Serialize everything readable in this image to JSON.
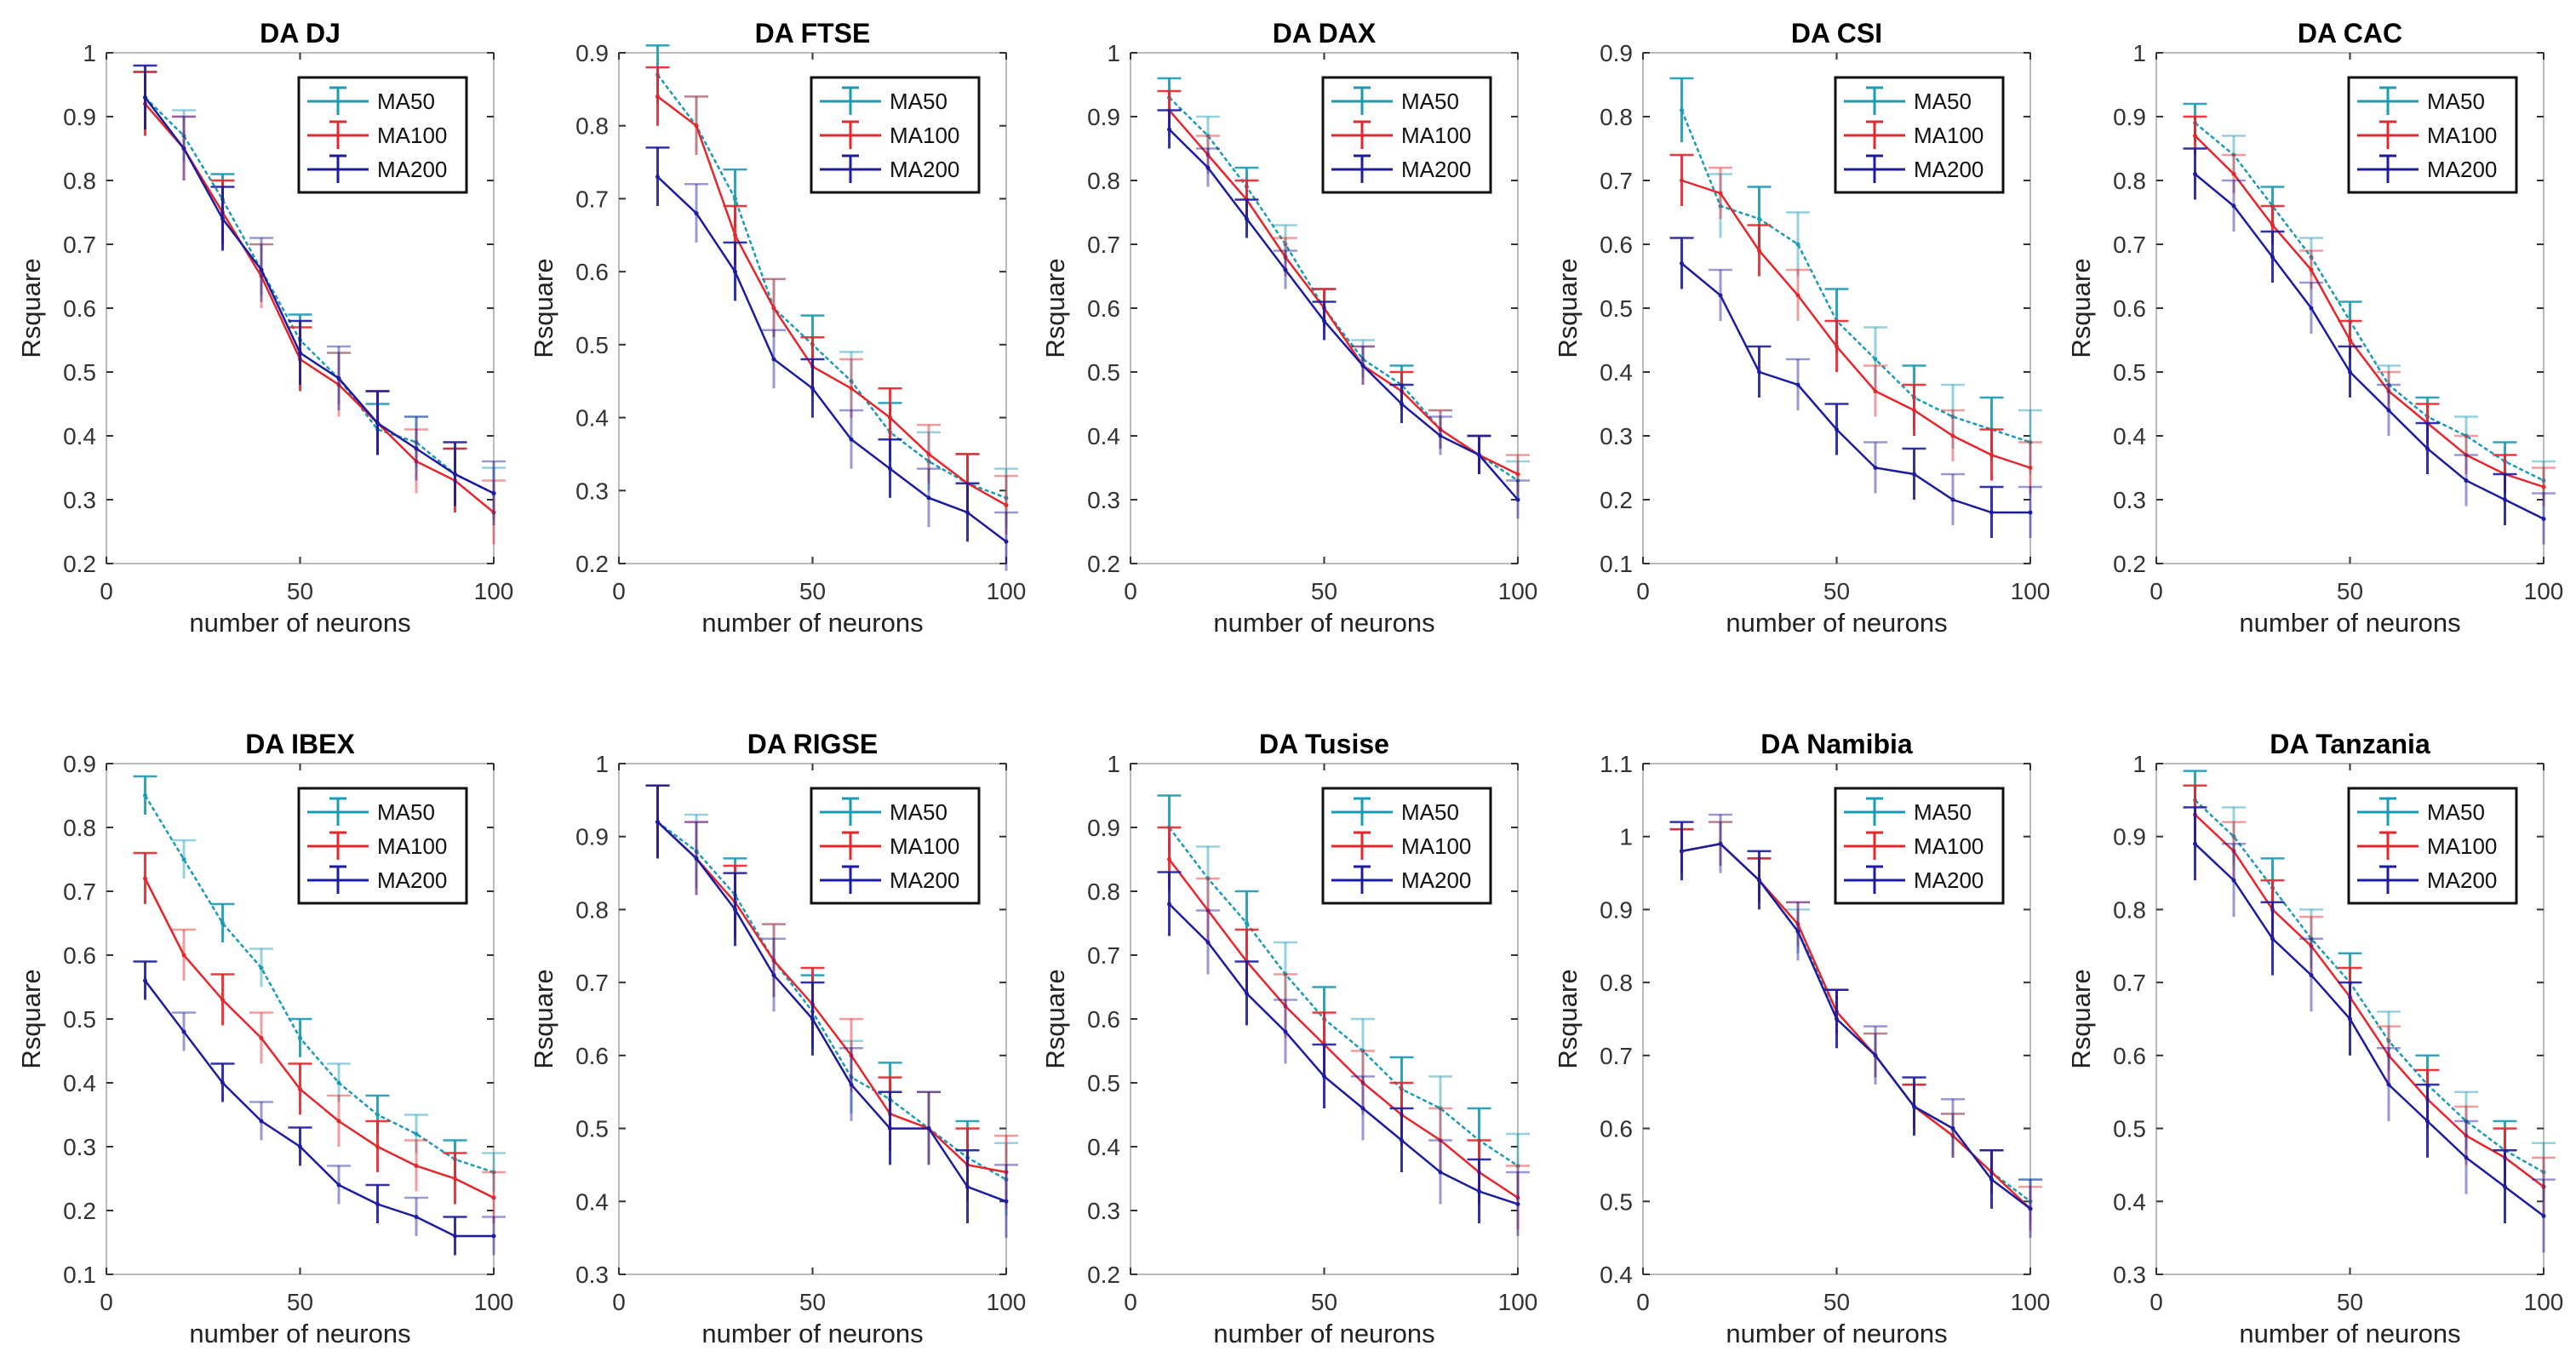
{
  "colors": {
    "MA50": "#1a9bb5",
    "MA100": "#e5262b",
    "MA200": "#1c1ca0"
  },
  "chart_data": [
    {
      "type": "line",
      "title": "DA DJ",
      "xlabel": "number of neurons",
      "ylabel": "Rsquare",
      "xlim": [
        0,
        100
      ],
      "ylim": [
        0.2,
        1
      ],
      "xticks": [
        "0",
        "50",
        "100"
      ],
      "yticks": [
        "0.2",
        "0.3",
        "0.4",
        "0.5",
        "0.6",
        "0.7",
        "0.8",
        "0.9",
        "1"
      ],
      "legend": "top-right",
      "x": [
        10,
        20,
        30,
        40,
        50,
        60,
        70,
        80,
        90,
        100
      ],
      "series": [
        {
          "name": "MA50",
          "values": [
            0.93,
            0.87,
            0.77,
            0.66,
            0.55,
            0.49,
            0.41,
            0.39,
            0.34,
            0.31
          ],
          "yerr": 0.04
        },
        {
          "name": "MA100",
          "values": [
            0.92,
            0.85,
            0.75,
            0.65,
            0.52,
            0.48,
            0.42,
            0.36,
            0.33,
            0.28
          ],
          "yerr": 0.05
        },
        {
          "name": "MA200",
          "values": [
            0.93,
            0.85,
            0.74,
            0.66,
            0.53,
            0.49,
            0.42,
            0.38,
            0.34,
            0.31
          ],
          "yerr": 0.05
        }
      ]
    },
    {
      "type": "line",
      "title": "DA FTSE",
      "xlabel": "number of neurons",
      "ylabel": "Rsquare",
      "xlim": [
        0,
        100
      ],
      "ylim": [
        0.2,
        0.9
      ],
      "xticks": [
        "0",
        "50",
        "100"
      ],
      "yticks": [
        "0.2",
        "0.3",
        "0.4",
        "0.5",
        "0.6",
        "0.7",
        "0.8",
        "0.9"
      ],
      "legend": "top-right",
      "x": [
        10,
        20,
        30,
        40,
        50,
        60,
        70,
        80,
        90,
        100
      ],
      "series": [
        {
          "name": "MA50",
          "values": [
            0.87,
            0.8,
            0.7,
            0.55,
            0.5,
            0.45,
            0.38,
            0.34,
            0.31,
            0.29
          ],
          "yerr": 0.04
        },
        {
          "name": "MA100",
          "values": [
            0.84,
            0.8,
            0.65,
            0.55,
            0.47,
            0.44,
            0.4,
            0.35,
            0.31,
            0.28
          ],
          "yerr": 0.04
        },
        {
          "name": "MA200",
          "values": [
            0.73,
            0.68,
            0.6,
            0.48,
            0.44,
            0.37,
            0.33,
            0.29,
            0.27,
            0.23
          ],
          "yerr": 0.04
        }
      ]
    },
    {
      "type": "line",
      "title": "DA DAX",
      "xlabel": "number of neurons",
      "ylabel": "Rsquare",
      "xlim": [
        0,
        100
      ],
      "ylim": [
        0.2,
        1
      ],
      "xticks": [
        "0",
        "50",
        "100"
      ],
      "yticks": [
        "0.2",
        "0.3",
        "0.4",
        "0.5",
        "0.6",
        "0.7",
        "0.8",
        "0.9",
        "1"
      ],
      "legend": "top-right",
      "x": [
        10,
        20,
        30,
        40,
        50,
        60,
        70,
        80,
        90,
        100
      ],
      "series": [
        {
          "name": "MA50",
          "values": [
            0.93,
            0.87,
            0.79,
            0.7,
            0.6,
            0.52,
            0.48,
            0.41,
            0.37,
            0.33
          ],
          "yerr": 0.03
        },
        {
          "name": "MA100",
          "values": [
            0.91,
            0.84,
            0.77,
            0.68,
            0.6,
            0.51,
            0.47,
            0.41,
            0.37,
            0.34
          ],
          "yerr": 0.03
        },
        {
          "name": "MA200",
          "values": [
            0.88,
            0.82,
            0.74,
            0.66,
            0.58,
            0.51,
            0.45,
            0.4,
            0.37,
            0.3
          ],
          "yerr": 0.03
        }
      ]
    },
    {
      "type": "line",
      "title": "DA CSI",
      "xlabel": "number of neurons",
      "ylabel": "Rsquare",
      "xlim": [
        0,
        100
      ],
      "ylim": [
        0.1,
        0.9
      ],
      "xticks": [
        "0",
        "50",
        "100"
      ],
      "yticks": [
        "0.1",
        "0.2",
        "0.3",
        "0.4",
        "0.5",
        "0.6",
        "0.7",
        "0.8",
        "0.9"
      ],
      "legend": "top-right",
      "x": [
        10,
        20,
        30,
        40,
        50,
        60,
        70,
        80,
        90,
        100
      ],
      "series": [
        {
          "name": "MA50",
          "values": [
            0.81,
            0.66,
            0.64,
            0.6,
            0.48,
            0.42,
            0.36,
            0.33,
            0.31,
            0.29
          ],
          "yerr": 0.05
        },
        {
          "name": "MA100",
          "values": [
            0.7,
            0.68,
            0.59,
            0.52,
            0.44,
            0.37,
            0.34,
            0.3,
            0.27,
            0.25
          ],
          "yerr": 0.04
        },
        {
          "name": "MA200",
          "values": [
            0.57,
            0.52,
            0.4,
            0.38,
            0.31,
            0.25,
            0.24,
            0.2,
            0.18,
            0.18
          ],
          "yerr": 0.04
        }
      ]
    },
    {
      "type": "line",
      "title": "DA CAC",
      "xlabel": "number of neurons",
      "ylabel": "Rsquare",
      "xlim": [
        0,
        100
      ],
      "ylim": [
        0.2,
        1
      ],
      "xticks": [
        "0",
        "50",
        "100"
      ],
      "yticks": [
        "0.2",
        "0.3",
        "0.4",
        "0.5",
        "0.6",
        "0.7",
        "0.8",
        "0.9",
        "1"
      ],
      "legend": "top-right",
      "x": [
        10,
        20,
        30,
        40,
        50,
        60,
        70,
        80,
        90,
        100
      ],
      "series": [
        {
          "name": "MA50",
          "values": [
            0.89,
            0.84,
            0.76,
            0.68,
            0.58,
            0.48,
            0.43,
            0.4,
            0.36,
            0.33
          ],
          "yerr": 0.03
        },
        {
          "name": "MA100",
          "values": [
            0.87,
            0.81,
            0.73,
            0.66,
            0.55,
            0.47,
            0.42,
            0.37,
            0.34,
            0.32
          ],
          "yerr": 0.03
        },
        {
          "name": "MA200",
          "values": [
            0.81,
            0.76,
            0.68,
            0.6,
            0.5,
            0.44,
            0.38,
            0.33,
            0.3,
            0.27
          ],
          "yerr": 0.04
        }
      ]
    },
    {
      "type": "line",
      "title": "DA IBEX",
      "xlabel": "number of neurons",
      "ylabel": "Rsquare",
      "xlim": [
        0,
        100
      ],
      "ylim": [
        0.1,
        0.9
      ],
      "xticks": [
        "0",
        "50",
        "100"
      ],
      "yticks": [
        "0.1",
        "0.2",
        "0.3",
        "0.4",
        "0.5",
        "0.6",
        "0.7",
        "0.8",
        "0.9"
      ],
      "legend": "top-right",
      "x": [
        10,
        20,
        30,
        40,
        50,
        60,
        70,
        80,
        90,
        100
      ],
      "series": [
        {
          "name": "MA50",
          "values": [
            0.85,
            0.75,
            0.65,
            0.58,
            0.47,
            0.4,
            0.35,
            0.32,
            0.28,
            0.26
          ],
          "yerr": 0.03
        },
        {
          "name": "MA100",
          "values": [
            0.72,
            0.6,
            0.53,
            0.47,
            0.39,
            0.34,
            0.3,
            0.27,
            0.25,
            0.22
          ],
          "yerr": 0.04
        },
        {
          "name": "MA200",
          "values": [
            0.56,
            0.48,
            0.4,
            0.34,
            0.3,
            0.24,
            0.21,
            0.19,
            0.16,
            0.16
          ],
          "yerr": 0.03
        }
      ]
    },
    {
      "type": "line",
      "title": "DA RIGSE",
      "xlabel": "number of neurons",
      "ylabel": "Rsquare",
      "xlim": [
        0,
        100
      ],
      "ylim": [
        0.3,
        1
      ],
      "xticks": [
        "0",
        "50",
        "100"
      ],
      "yticks": [
        "0.3",
        "0.4",
        "0.5",
        "0.6",
        "0.7",
        "0.8",
        "0.9",
        "1"
      ],
      "legend": "top-right",
      "x": [
        10,
        20,
        30,
        40,
        50,
        60,
        70,
        80,
        90,
        100
      ],
      "series": [
        {
          "name": "MA50",
          "values": [
            0.92,
            0.88,
            0.82,
            0.73,
            0.66,
            0.57,
            0.54,
            0.5,
            0.46,
            0.43
          ],
          "yerr": 0.05
        },
        {
          "name": "MA100",
          "values": [
            0.92,
            0.87,
            0.81,
            0.73,
            0.67,
            0.6,
            0.52,
            0.5,
            0.45,
            0.44
          ],
          "yerr": 0.05
        },
        {
          "name": "MA200",
          "values": [
            0.92,
            0.87,
            0.8,
            0.71,
            0.65,
            0.56,
            0.5,
            0.5,
            0.42,
            0.4
          ],
          "yerr": 0.05
        }
      ]
    },
    {
      "type": "line",
      "title": "DA Tusise",
      "xlabel": "number of neurons",
      "ylabel": "Rsquare",
      "xlim": [
        0,
        100
      ],
      "ylim": [
        0.2,
        1
      ],
      "xticks": [
        "0",
        "50",
        "100"
      ],
      "yticks": [
        "0.2",
        "0.3",
        "0.4",
        "0.5",
        "0.6",
        "0.7",
        "0.8",
        "0.9",
        "1"
      ],
      "legend": "top-right",
      "x": [
        10,
        20,
        30,
        40,
        50,
        60,
        70,
        80,
        90,
        100
      ],
      "series": [
        {
          "name": "MA50",
          "values": [
            0.9,
            0.82,
            0.75,
            0.67,
            0.6,
            0.55,
            0.49,
            0.46,
            0.41,
            0.37
          ],
          "yerr": 0.05
        },
        {
          "name": "MA100",
          "values": [
            0.85,
            0.77,
            0.69,
            0.62,
            0.56,
            0.5,
            0.45,
            0.41,
            0.36,
            0.32
          ],
          "yerr": 0.05
        },
        {
          "name": "MA200",
          "values": [
            0.78,
            0.72,
            0.64,
            0.58,
            0.51,
            0.46,
            0.41,
            0.36,
            0.33,
            0.31
          ],
          "yerr": 0.05
        }
      ]
    },
    {
      "type": "line",
      "title": "DA Namibia",
      "xlabel": "number of neurons",
      "ylabel": "Rsquare",
      "xlim": [
        0,
        100
      ],
      "ylim": [
        0.4,
        1.1
      ],
      "xticks": [
        "0",
        "50",
        "100"
      ],
      "yticks": [
        "0.4",
        "0.5",
        "0.6",
        "0.7",
        "0.8",
        "0.9",
        "1",
        "1.1"
      ],
      "legend": "top-right",
      "x": [
        10,
        20,
        30,
        40,
        50,
        60,
        70,
        80,
        90,
        100
      ],
      "series": [
        {
          "name": "MA50",
          "values": [
            0.98,
            0.99,
            0.94,
            0.87,
            0.76,
            0.7,
            0.63,
            0.59,
            0.54,
            0.5
          ],
          "yerr": 0.03
        },
        {
          "name": "MA100",
          "values": [
            0.98,
            0.99,
            0.94,
            0.88,
            0.76,
            0.7,
            0.63,
            0.59,
            0.54,
            0.49
          ],
          "yerr": 0.03
        },
        {
          "name": "MA200",
          "values": [
            0.98,
            0.99,
            0.94,
            0.87,
            0.75,
            0.7,
            0.63,
            0.6,
            0.53,
            0.49
          ],
          "yerr": 0.04
        }
      ]
    },
    {
      "type": "line",
      "title": "DA Tanzania",
      "xlabel": "number of neurons",
      "ylabel": "Rsquare",
      "xlim": [
        0,
        100
      ],
      "ylim": [
        0.3,
        1
      ],
      "xticks": [
        "0",
        "50",
        "100"
      ],
      "yticks": [
        "0.3",
        "0.4",
        "0.5",
        "0.6",
        "0.7",
        "0.8",
        "0.9",
        "1"
      ],
      "legend": "top-right",
      "x": [
        10,
        20,
        30,
        40,
        50,
        60,
        70,
        80,
        90,
        100
      ],
      "series": [
        {
          "name": "MA50",
          "values": [
            0.95,
            0.9,
            0.83,
            0.76,
            0.7,
            0.62,
            0.56,
            0.51,
            0.47,
            0.44
          ],
          "yerr": 0.04
        },
        {
          "name": "MA100",
          "values": [
            0.93,
            0.88,
            0.8,
            0.75,
            0.68,
            0.6,
            0.54,
            0.49,
            0.46,
            0.42
          ],
          "yerr": 0.04
        },
        {
          "name": "MA200",
          "values": [
            0.89,
            0.84,
            0.76,
            0.71,
            0.65,
            0.56,
            0.51,
            0.46,
            0.42,
            0.38
          ],
          "yerr": 0.05
        }
      ]
    }
  ]
}
